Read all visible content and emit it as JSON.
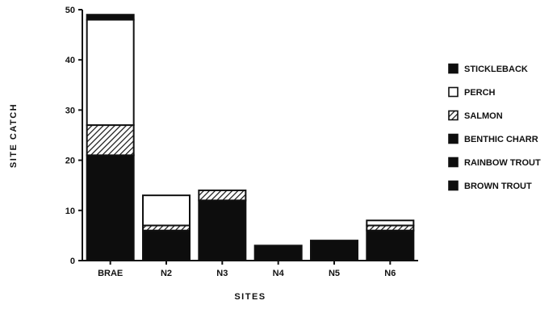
{
  "chart_data": {
    "type": "bar",
    "stacked": true,
    "title": "",
    "xlabel": "SITES",
    "ylabel": "SITE CATCH",
    "ylim": [
      0,
      50
    ],
    "yticks": [
      0,
      10,
      20,
      30,
      40,
      50
    ],
    "grid": false,
    "legend_position": "right",
    "categories": [
      "BRAE",
      "N2",
      "N3",
      "N4",
      "N5",
      "N6"
    ],
    "series": [
      {
        "name": "BROWN TROUT",
        "pattern": "solid",
        "color": "#0d0d0d",
        "values": [
          21,
          6,
          12,
          3,
          4,
          6
        ]
      },
      {
        "name": "RAINBOW TROUT",
        "pattern": "solid",
        "color": "#0d0d0d",
        "values": [
          0,
          0,
          0,
          0,
          0,
          0
        ]
      },
      {
        "name": "BENTHIC CHARR",
        "pattern": "solid",
        "color": "#0d0d0d",
        "values": [
          0,
          0,
          0,
          0,
          0,
          0
        ]
      },
      {
        "name": "SALMON",
        "pattern": "hatch",
        "color": "#0d0d0d",
        "values": [
          6,
          1,
          2,
          0,
          0,
          1
        ]
      },
      {
        "name": "PERCH",
        "pattern": "open",
        "color": "#ffffff",
        "values": [
          21,
          6,
          0,
          0,
          0,
          1
        ]
      },
      {
        "name": "STICKLEBACK",
        "pattern": "solid",
        "color": "#0d0d0d",
        "values": [
          1,
          0,
          0,
          0,
          0,
          0
        ]
      }
    ],
    "legend_order": [
      "STICKLEBACK",
      "PERCH",
      "SALMON",
      "BENTHIC CHARR",
      "RAINBOW TROUT",
      "BROWN TROUT"
    ]
  }
}
